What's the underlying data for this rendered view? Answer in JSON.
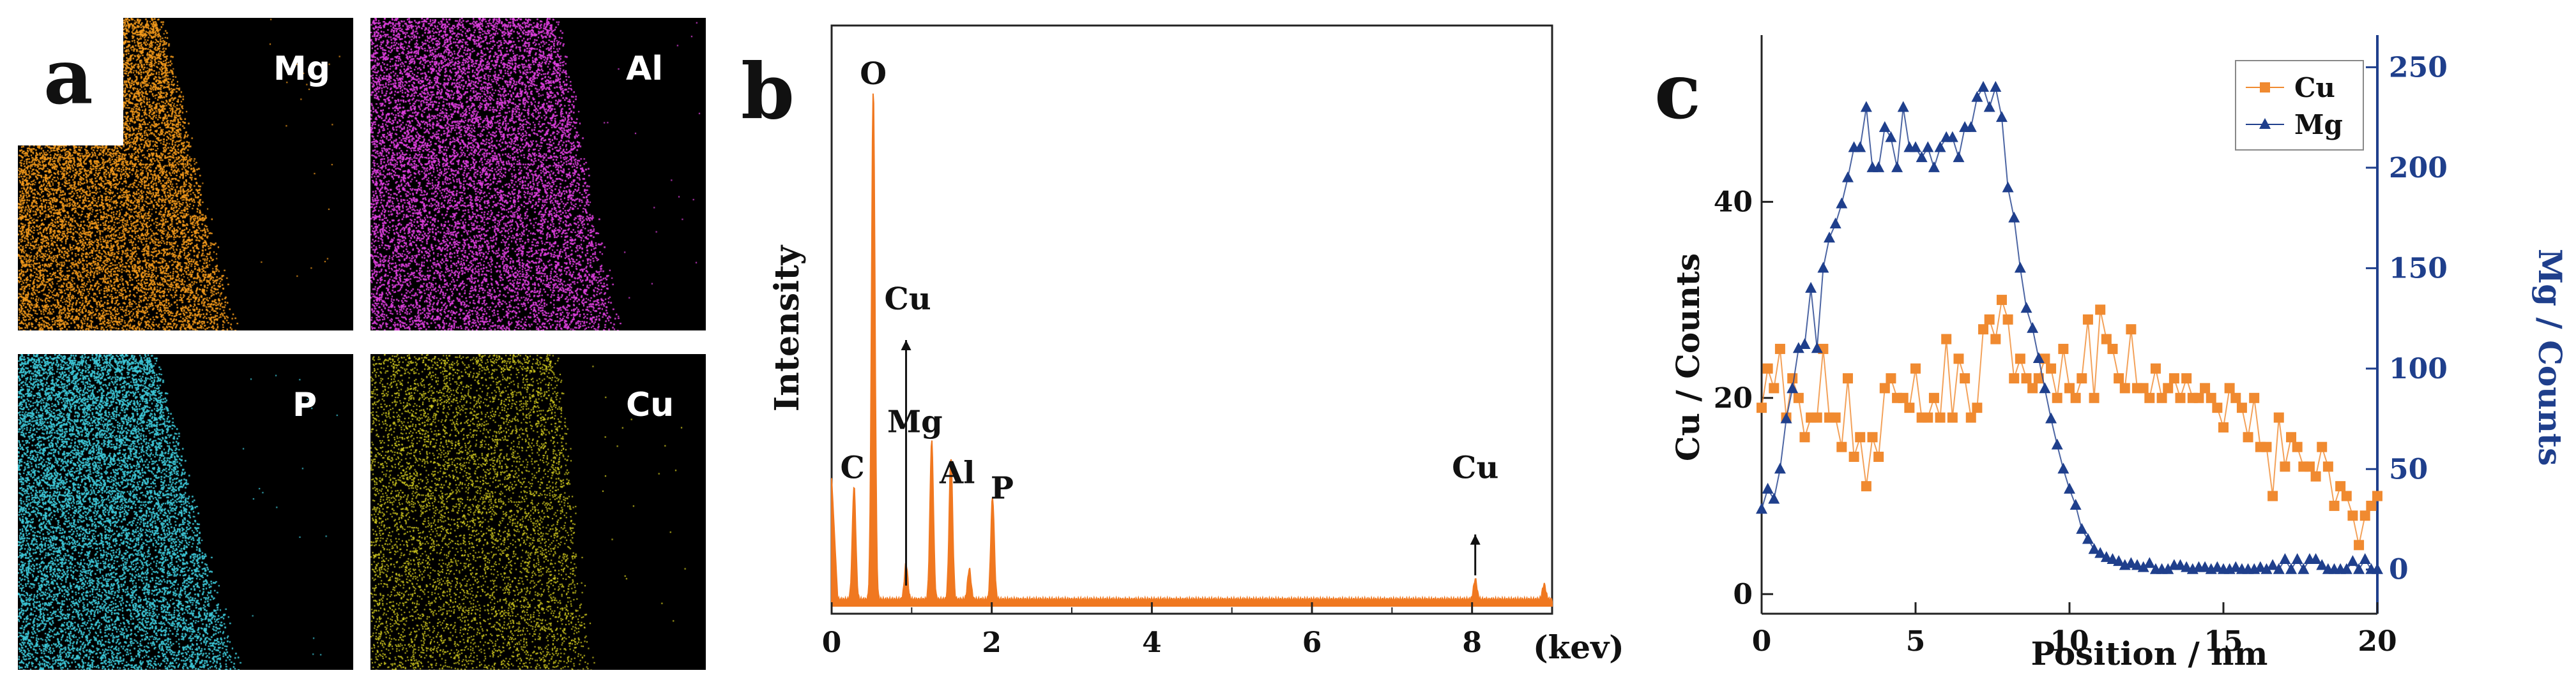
{
  "panel_a": {
    "letter": "a",
    "maps": [
      {
        "label": "Mg",
        "color": "#f39a1c",
        "density": 0.55
      },
      {
        "label": "Al",
        "color": "#e040e0",
        "density": 0.55
      },
      {
        "label": "P",
        "color": "#3ec8d8",
        "density": 0.6
      },
      {
        "label": "Cu",
        "color": "#d8d020",
        "density": 0.12
      }
    ]
  },
  "chart_data": [
    {
      "panel": "b",
      "type": "line",
      "xlabel": "(kev)",
      "ylabel": "Intensity",
      "xlim": [
        0,
        9
      ],
      "xticks": [
        "0",
        "2",
        "4",
        "6",
        "8"
      ],
      "color": "#f07820",
      "peaks": [
        {
          "x": 0.28,
          "y": 0.22
        },
        {
          "x": 0.52,
          "y": 1.0
        },
        {
          "x": 0.93,
          "y": 0.07
        },
        {
          "x": 1.25,
          "y": 0.31
        },
        {
          "x": 1.49,
          "y": 0.28
        },
        {
          "x": 1.72,
          "y": 0.06
        },
        {
          "x": 2.01,
          "y": 0.2
        },
        {
          "x": 8.04,
          "y": 0.04
        },
        {
          "x": 8.9,
          "y": 0.03
        }
      ],
      "annotations": [
        {
          "text": "O",
          "x": 0.52,
          "y": 1.02
        },
        {
          "text": "C",
          "x": 0.26,
          "y": 0.25
        },
        {
          "text": "Cu",
          "x": 0.95,
          "y": 0.58
        },
        {
          "text": "Mg",
          "x": 1.04,
          "y": 0.34
        },
        {
          "text": "Al",
          "x": 1.57,
          "y": 0.24
        },
        {
          "text": "P",
          "x": 2.13,
          "y": 0.21
        },
        {
          "text": "Cu",
          "x": 8.04,
          "y": 0.25
        }
      ]
    },
    {
      "panel": "c",
      "type": "line",
      "xlabel": "Position / nm",
      "ylabel_left": "Cu / Counts",
      "ylabel_right": "Mg / Counts",
      "xlim": [
        0,
        20
      ],
      "ylim_left": [
        -2,
        57
      ],
      "ylim_right": [
        -22,
        266
      ],
      "xticks": [
        "0",
        "5",
        "10",
        "15",
        "20"
      ],
      "yticks_left": [
        "0",
        "20",
        "40"
      ],
      "yticks_right": [
        "0",
        "50",
        "100",
        "150",
        "200",
        "250"
      ],
      "legend_position": "top-right",
      "series": [
        {
          "name": "Cu",
          "axis": "left",
          "marker": "square",
          "color": "#f08a30",
          "x": [
            0,
            0.2,
            0.4,
            0.6,
            0.8,
            1.0,
            1.2,
            1.4,
            1.6,
            1.8,
            2.0,
            2.2,
            2.4,
            2.6,
            2.8,
            3.0,
            3.2,
            3.4,
            3.6,
            3.8,
            4.0,
            4.2,
            4.4,
            4.6,
            4.8,
            5.0,
            5.2,
            5.4,
            5.6,
            5.8,
            6.0,
            6.2,
            6.4,
            6.6,
            6.8,
            7.0,
            7.2,
            7.4,
            7.6,
            7.8,
            8.0,
            8.2,
            8.4,
            8.6,
            8.8,
            9.0,
            9.2,
            9.4,
            9.6,
            9.8,
            10.0,
            10.2,
            10.4,
            10.6,
            10.8,
            11.0,
            11.2,
            11.4,
            11.6,
            11.8,
            12.0,
            12.2,
            12.4,
            12.6,
            12.8,
            13.0,
            13.2,
            13.4,
            13.6,
            13.8,
            14.0,
            14.2,
            14.4,
            14.6,
            14.8,
            15.0,
            15.2,
            15.4,
            15.6,
            15.8,
            16.0,
            16.2,
            16.4,
            16.6,
            16.8,
            17.0,
            17.2,
            17.4,
            17.6,
            17.8,
            18.0,
            18.2,
            18.4,
            18.6,
            18.8,
            19.0,
            19.2,
            19.4,
            19.6,
            19.8,
            20.0
          ],
          "y": [
            19,
            23,
            21,
            25,
            18,
            22,
            20,
            16,
            18,
            18,
            25,
            18,
            18,
            15,
            22,
            14,
            16,
            11,
            16,
            14,
            21,
            22,
            20,
            20,
            19,
            23,
            18,
            18,
            20,
            18,
            26,
            18,
            24,
            22,
            18,
            19,
            27,
            28,
            26,
            30,
            28,
            22,
            24,
            22,
            21,
            22,
            24,
            23,
            20,
            25,
            21,
            20,
            22,
            28,
            20,
            29,
            26,
            25,
            22,
            21,
            27,
            21,
            21,
            20,
            23,
            20,
            21,
            22,
            20,
            22,
            20,
            20,
            21,
            20,
            19,
            17,
            21,
            20,
            19,
            16,
            20,
            15,
            15,
            10,
            18,
            13,
            16,
            15,
            13,
            13,
            12,
            15,
            13,
            9,
            11,
            10,
            8,
            5,
            8,
            9,
            10
          ]
        },
        {
          "name": "Mg",
          "axis": "right",
          "marker": "triangle",
          "color": "#1f3f8c",
          "x": [
            0,
            0.2,
            0.4,
            0.6,
            0.8,
            1.0,
            1.2,
            1.4,
            1.6,
            1.8,
            2.0,
            2.2,
            2.4,
            2.6,
            2.8,
            3.0,
            3.2,
            3.4,
            3.6,
            3.8,
            4.0,
            4.2,
            4.4,
            4.6,
            4.8,
            5.0,
            5.2,
            5.4,
            5.6,
            5.8,
            6.0,
            6.2,
            6.4,
            6.6,
            6.8,
            7.0,
            7.2,
            7.4,
            7.6,
            7.8,
            8.0,
            8.2,
            8.4,
            8.6,
            8.8,
            9.0,
            9.2,
            9.4,
            9.6,
            9.8,
            10.0,
            10.2,
            10.4,
            10.6,
            10.8,
            11.0,
            11.2,
            11.4,
            11.6,
            11.8,
            12.0,
            12.2,
            12.4,
            12.6,
            12.8,
            13.0,
            13.2,
            13.4,
            13.6,
            13.8,
            14.0,
            14.2,
            14.4,
            14.6,
            14.8,
            15.0,
            15.2,
            15.4,
            15.6,
            15.8,
            16.0,
            16.2,
            16.4,
            16.6,
            16.8,
            17.0,
            17.2,
            17.4,
            17.6,
            17.8,
            18.0,
            18.2,
            18.4,
            18.6,
            18.8,
            19.0,
            19.2,
            19.4,
            19.6,
            19.8,
            20.0
          ],
          "y": [
            30,
            40,
            35,
            50,
            75,
            90,
            110,
            112,
            140,
            110,
            150,
            165,
            172,
            182,
            195,
            210,
            210,
            230,
            200,
            200,
            220,
            215,
            200,
            230,
            210,
            210,
            205,
            210,
            200,
            210,
            215,
            215,
            205,
            220,
            220,
            235,
            240,
            230,
            240,
            225,
            190,
            175,
            150,
            130,
            120,
            105,
            90,
            75,
            62,
            50,
            40,
            32,
            20,
            15,
            10,
            8,
            6,
            5,
            4,
            2,
            3,
            2,
            1,
            3,
            0,
            0,
            0,
            2,
            2,
            1,
            0,
            1,
            1,
            0,
            1,
            0,
            0,
            1,
            0,
            0,
            0,
            1,
            0,
            2,
            0,
            5,
            0,
            5,
            0,
            5,
            5,
            2,
            0,
            0,
            0,
            0,
            4,
            0,
            5,
            0,
            0
          ]
        }
      ]
    }
  ]
}
